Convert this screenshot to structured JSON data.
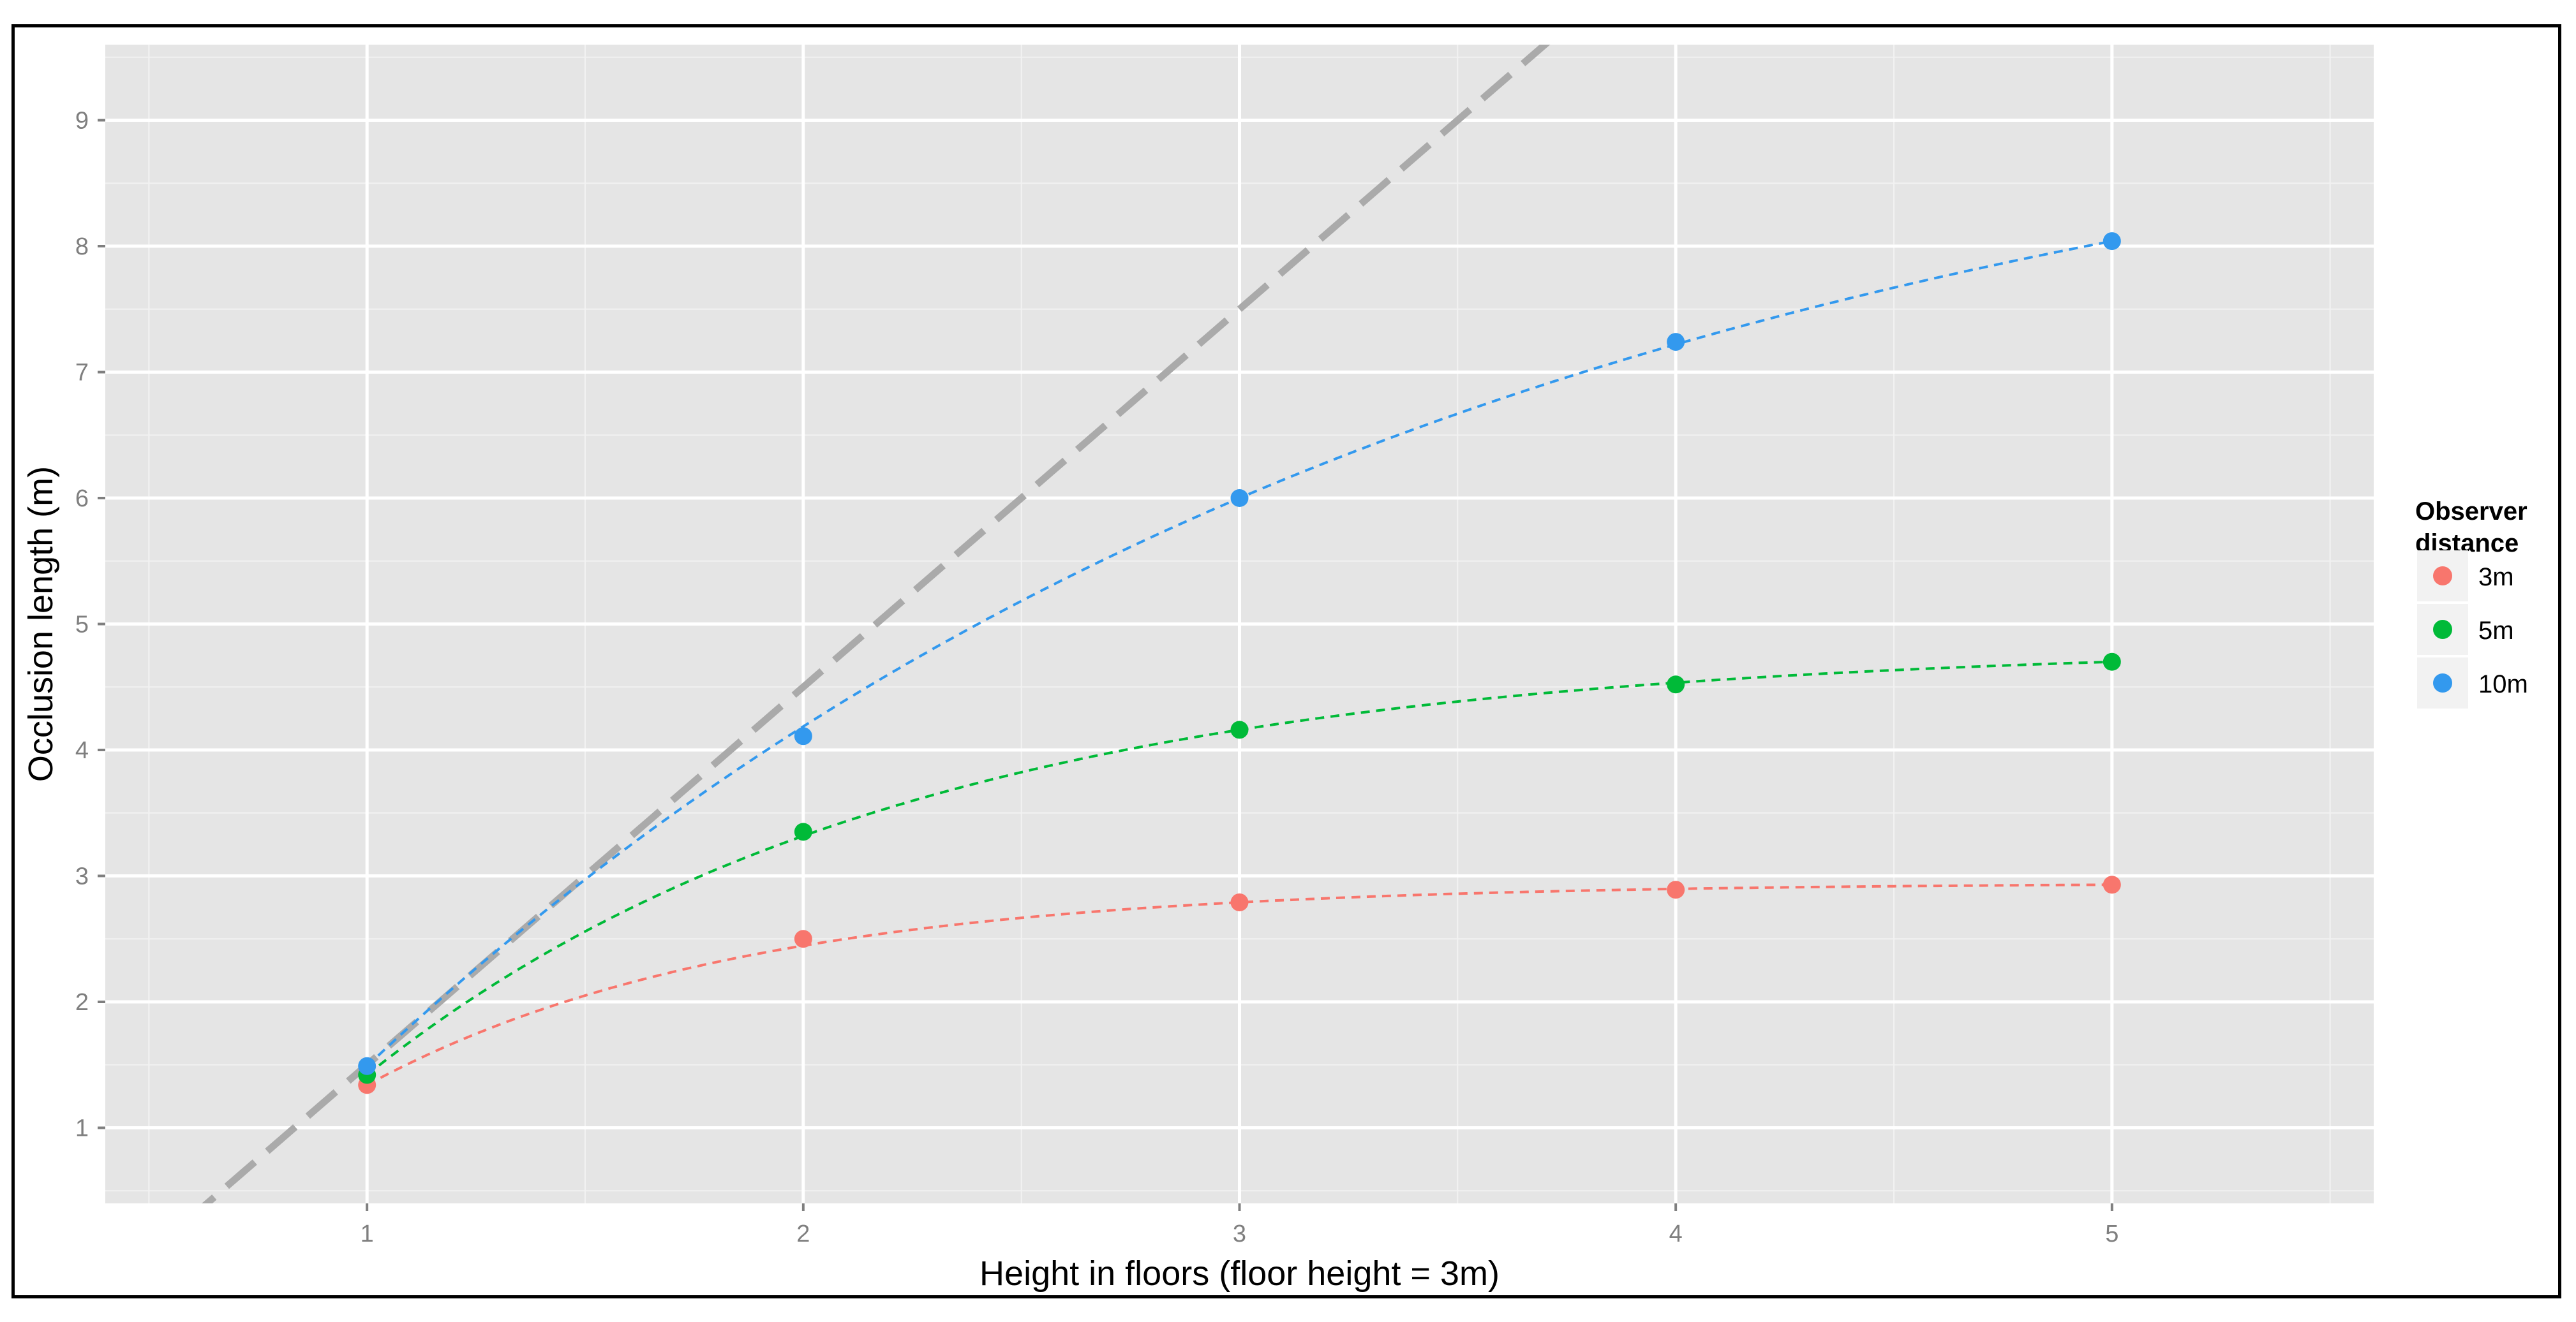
{
  "chart_data": {
    "type": "line",
    "xlabel": "Height in floors (floor height = 3m)",
    "ylabel": "Occlusion length (m)",
    "xlim": [
      0.4,
      5.6
    ],
    "ylim": [
      0.4,
      9.6
    ],
    "x_ticks": [
      "1",
      "2",
      "3",
      "4",
      "5"
    ],
    "y_ticks": [
      "1",
      "2",
      "3",
      "4",
      "5",
      "6",
      "7",
      "8",
      "9"
    ],
    "grid": true,
    "background": "#e5e5e5",
    "gridline_color": "#ffffff",
    "x": [
      1,
      2,
      3,
      4,
      5
    ],
    "series": [
      {
        "name": "3m",
        "color": "#f8766d",
        "values": [
          1.34,
          2.5,
          2.79,
          2.89,
          2.93
        ]
      },
      {
        "name": "5m",
        "color": "#00ba38",
        "values": [
          1.42,
          3.35,
          4.16,
          4.52,
          4.7
        ]
      },
      {
        "name": "10m",
        "color": "#3399ee",
        "values": [
          1.49,
          4.11,
          6.0,
          7.24,
          8.04
        ]
      }
    ],
    "reference_line": {
      "style": "dashed",
      "color": "#aaaaaa",
      "slope": 3,
      "intercept": -1.5
    },
    "legend": {
      "title": "Observer distance",
      "title_lines": [
        "Observer",
        "distance"
      ],
      "placement": "right"
    }
  }
}
